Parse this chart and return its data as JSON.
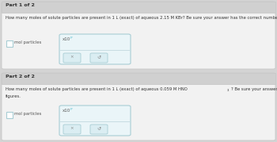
{
  "bg_color": "#d4d4d4",
  "panel_bg": "#f2f2f2",
  "header_bg": "#d0d0d0",
  "box_border": "#a8cdd4",
  "input_bg": "#eaf5f8",
  "btn_bg": "#daedf2",
  "white": "#ffffff",
  "text_dark": "#333333",
  "text_mid": "#555555",
  "text_light": "#888888",
  "cyan": "#5bbccc",
  "part1_header": "Part 1 of 2",
  "part1_question": "How many moles of solute particles are present in 1 L (exact) of aqueous 2.15 M KBr? Be sure your answer has the correct number of significant figures.",
  "part2_header": "Part 2 of 2",
  "part2_q_pre": "How many moles of solute particles are present in 1 L (exact) of aqueous 0.059 M HNO",
  "part2_q_sub": "3",
  "part2_q_post": "? Be sure your answer has the correct number of significant",
  "part2_q_line2": "figures.",
  "label": "mol particles",
  "x_symbol": "×",
  "reset_symbol": "↺",
  "exp_symbol": "P"
}
